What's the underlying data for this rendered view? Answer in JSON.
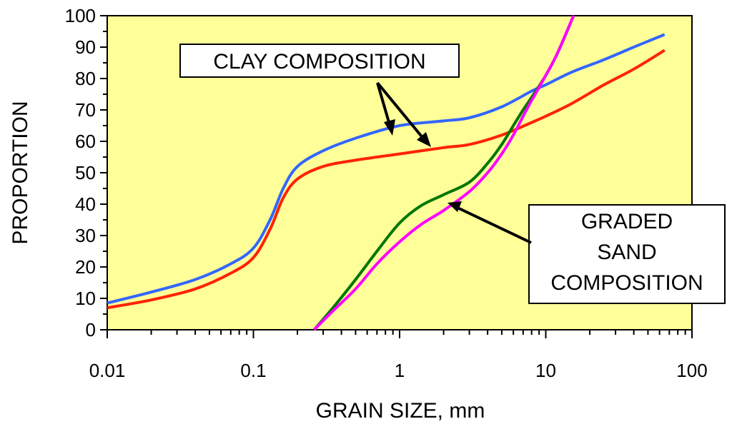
{
  "chart_data": {
    "type": "line",
    "title": "",
    "xlabel": "GRAIN SIZE, mm",
    "ylabel": "PROPORTION",
    "xscale": "log",
    "xlim": [
      0.01,
      100
    ],
    "ylim": [
      0,
      100
    ],
    "x_tick_labels": [
      "0.01",
      "0.1",
      "1",
      "10",
      "100"
    ],
    "y_tick_labels": [
      "0",
      "10",
      "20",
      "30",
      "40",
      "50",
      "60",
      "70",
      "80",
      "90",
      "100"
    ],
    "plot_background": "#ffff99",
    "series": [
      {
        "name": "clay-blue",
        "color": "#3366ff",
        "x": [
          0.01,
          0.02,
          0.04,
          0.07,
          0.1,
          0.13,
          0.16,
          0.2,
          0.3,
          0.5,
          1,
          2,
          3,
          5,
          8,
          10,
          15,
          25,
          40,
          65
        ],
        "y": [
          8.5,
          12,
          16,
          21,
          26,
          35,
          45,
          52,
          57,
          61,
          65,
          66.5,
          67.5,
          71,
          76,
          78,
          82,
          86,
          90,
          94
        ]
      },
      {
        "name": "clay-red",
        "color": "#ff2200",
        "x": [
          0.01,
          0.02,
          0.04,
          0.07,
          0.1,
          0.13,
          0.16,
          0.2,
          0.3,
          0.5,
          1,
          2,
          3,
          5,
          8,
          10,
          15,
          25,
          40,
          65
        ],
        "y": [
          7,
          9.5,
          13,
          18,
          23,
          32,
          42,
          48,
          52,
          54,
          56,
          58,
          59,
          62,
          66,
          68,
          72,
          78,
          83,
          89
        ]
      },
      {
        "name": "sand-green",
        "color": "#007700",
        "x": [
          0.26,
          0.35,
          0.5,
          0.7,
          1,
          1.4,
          2,
          3,
          4,
          5,
          6,
          7,
          8,
          10,
          12,
          15.5
        ],
        "y": [
          0,
          7,
          16,
          25,
          34,
          39.5,
          43,
          47,
          53,
          59,
          65,
          70,
          74,
          81,
          88,
          100
        ]
      },
      {
        "name": "sand-magenta",
        "color": "#ff00ff",
        "x": [
          0.26,
          0.35,
          0.5,
          0.7,
          1,
          1.4,
          2,
          3,
          4,
          5,
          6,
          7,
          8,
          10,
          12,
          15.5
        ],
        "y": [
          0,
          6,
          13,
          21,
          28,
          33.5,
          38,
          44,
          50,
          56,
          62,
          68,
          73,
          81,
          88,
          100
        ]
      }
    ],
    "annotations": {
      "clay_label": "CLAY COMPOSITION",
      "sand_label_lines": [
        "GRADED",
        "SAND",
        "COMPOSITION"
      ]
    }
  }
}
